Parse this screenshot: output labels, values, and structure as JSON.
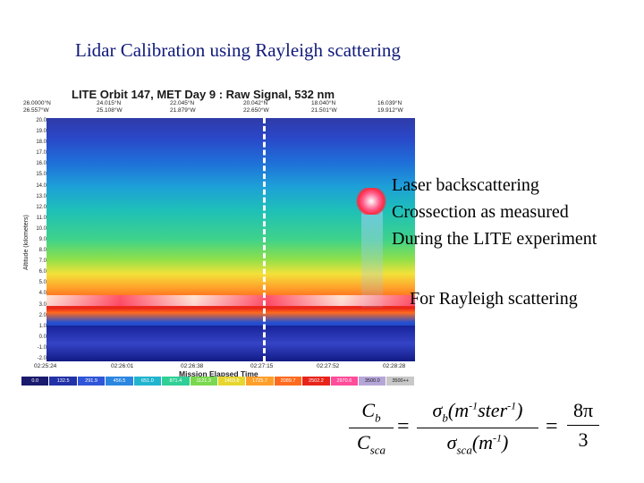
{
  "slide": {
    "title": "Lidar Calibration using Rayleigh scattering"
  },
  "figure": {
    "title": "LITE  Orbit 147, MET Day 9 :  Raw Signal, 532 nm",
    "coords": [
      {
        "lat": "26.0000°N",
        "lon": "26.557°W"
      },
      {
        "lat": "24.015°N",
        "lon": "25.108°W"
      },
      {
        "lat": "22.045°N",
        "lon": "21.879°W"
      },
      {
        "lat": "20.042°N",
        "lon": "22.650°W"
      },
      {
        "lat": "18.040°N",
        "lon": "21.501°W"
      },
      {
        "lat": "16.039°N",
        "lon": "19.912°W"
      }
    ],
    "y_axis_label": "Altitude (kilometers)",
    "y_ticks": [
      "20.0",
      "19.0",
      "18.0",
      "17.0",
      "16.0",
      "15.0",
      "14.0",
      "13.0",
      "12.0",
      "11.0",
      "10.0",
      "9.0",
      "8.0",
      "7.0",
      "6.0",
      "5.0",
      "4.0",
      "3.0",
      "2.0",
      "1.0",
      "0.0",
      "-1.0",
      "-2.0"
    ],
    "x_ticks": [
      "02:25:24",
      "02:26:01",
      "02:26:38",
      "02:27:15",
      "02:27:52",
      "02:28:28"
    ],
    "x_axis_label": "Mission Elapsed Time",
    "colorbar": [
      {
        "label": "0.0",
        "color": "#1a1a6e"
      },
      {
        "label": "132.5",
        "color": "#2231a6"
      },
      {
        "label": "291.9",
        "color": "#2f55d8"
      },
      {
        "label": "456.5",
        "color": "#2b86e0"
      },
      {
        "label": "651.0",
        "color": "#21b4cf"
      },
      {
        "label": "871.4",
        "color": "#2fcf96"
      },
      {
        "label": "1121.3",
        "color": "#7ad84e"
      },
      {
        "label": "1403.8",
        "color": "#e7d62e"
      },
      {
        "label": "1725.7",
        "color": "#ff9f2a"
      },
      {
        "label": "2089.7",
        "color": "#ff6b1e"
      },
      {
        "label": "2502.2",
        "color": "#e8241a"
      },
      {
        "label": "2970.6",
        "color": "#ff4d9a"
      },
      {
        "label": "3500.0",
        "color": "#b6a6d8"
      },
      {
        "label": "3500++",
        "color": "#c8c8c8"
      }
    ]
  },
  "description": {
    "line1": "Laser backscattering",
    "line2": "Crossection as measured",
    "line3": "During the LITE experiment",
    "rayleigh": "For Rayleigh scattering"
  },
  "equation": {
    "c": "C",
    "b": "b",
    "sca": "sca",
    "sigma": "σ",
    "m": "m",
    "ster": "ster",
    "neg1": "-1",
    "eq": "=",
    "eight_pi": "8π",
    "three": "3"
  }
}
